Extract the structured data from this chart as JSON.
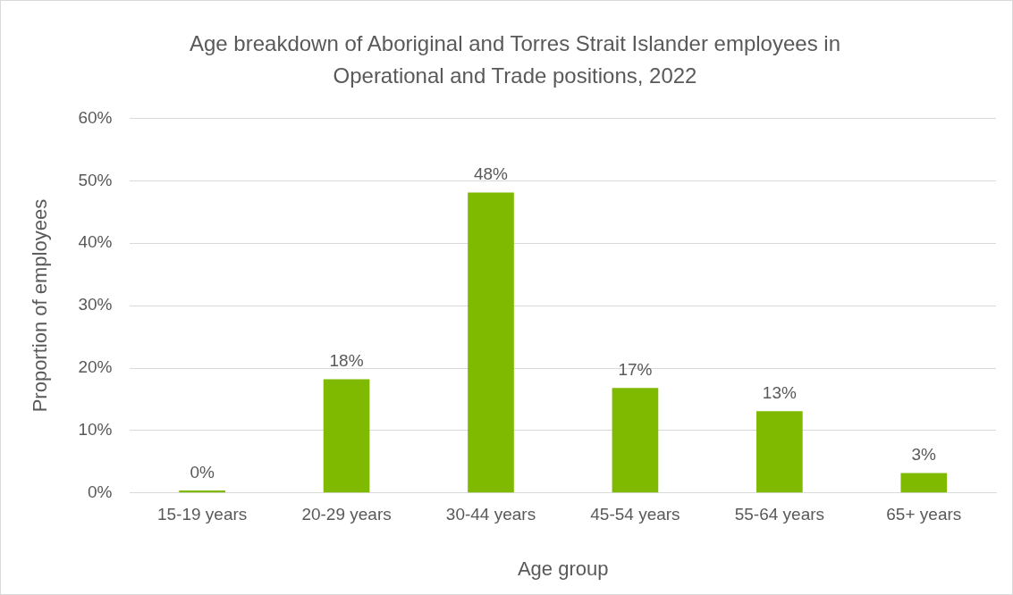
{
  "chart_data": {
    "type": "bar",
    "title": "Age breakdown of Aboriginal and Torres Strait Islander employees in Operational and Trade positions, 2022",
    "xlabel": "Age group",
    "ylabel": "Proportion of employees",
    "categories": [
      "15-19 years",
      "20-29 years",
      "30-44 years",
      "45-54 years",
      "55-64 years",
      "65+ years"
    ],
    "values": [
      0.4,
      18.2,
      48.1,
      16.8,
      13.1,
      3.2
    ],
    "value_labels": [
      "0%",
      "18%",
      "48%",
      "17%",
      "13%",
      "3%"
    ],
    "color": "#7fba00",
    "ylim": [
      0,
      60
    ],
    "yticks": [
      {
        "value": 0,
        "label": "0%"
      },
      {
        "value": 10,
        "label": "10%"
      },
      {
        "value": 20,
        "label": "20%"
      },
      {
        "value": 30,
        "label": "30%"
      },
      {
        "value": 40,
        "label": "40%"
      },
      {
        "value": 50,
        "label": "50%"
      },
      {
        "value": 60,
        "label": "60%"
      }
    ],
    "grid": "y",
    "legend": false
  }
}
